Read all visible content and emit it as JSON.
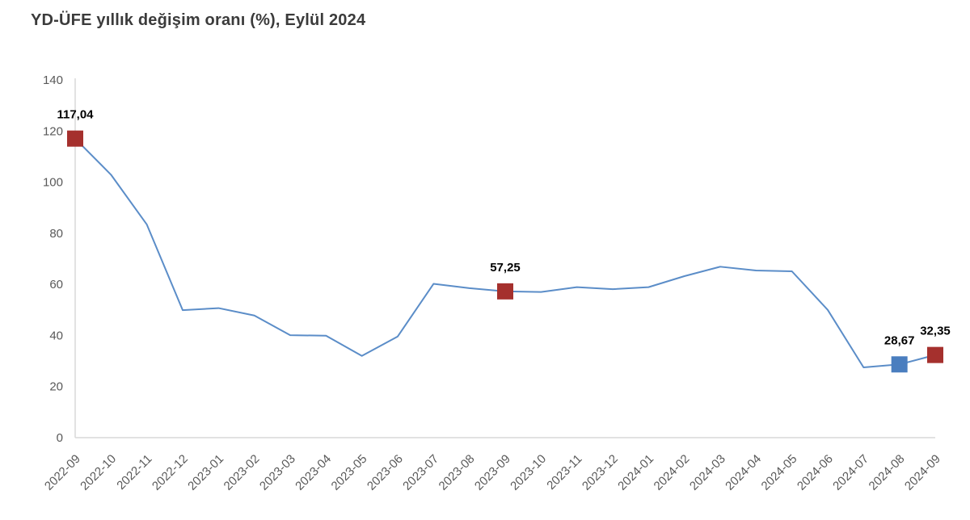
{
  "title": "YD-ÜFE yıllık değişim oranı (%), Eylül 2024",
  "chart_data": {
    "type": "line",
    "title": "YD-ÜFE yıllık değişim oranı (%), Eylül 2024",
    "xlabel": "",
    "ylabel": "",
    "ylim": [
      0,
      140
    ],
    "ytick_step": 20,
    "grid": false,
    "legend": "none",
    "x": [
      "2022-09",
      "2022-10",
      "2022-11",
      "2022-12",
      "2023-01",
      "2023-02",
      "2023-03",
      "2023-04",
      "2023-05",
      "2023-06",
      "2023-07",
      "2023-08",
      "2023-09",
      "2023-10",
      "2023-11",
      "2023-12",
      "2024-01",
      "2024-02",
      "2024-03",
      "2024-04",
      "2024-05",
      "2024-06",
      "2024-07",
      "2024-08",
      "2024-09"
    ],
    "values": [
      117.04,
      102.9,
      83.4,
      49.9,
      50.7,
      47.8,
      40.1,
      39.9,
      32.0,
      39.6,
      60.2,
      58.5,
      57.25,
      57.0,
      58.9,
      58.1,
      58.9,
      63.2,
      66.9,
      65.4,
      65.1,
      50.0,
      27.5,
      28.67,
      32.35
    ],
    "highlighted_points": [
      {
        "x": "2022-09",
        "value": 117.04,
        "label": "117,04",
        "color": "#A5302D"
      },
      {
        "x": "2023-09",
        "value": 57.25,
        "label": "57,25",
        "color": "#A5302D"
      },
      {
        "x": "2024-08",
        "value": 28.67,
        "label": "28,67",
        "color": "#4A7EBF"
      },
      {
        "x": "2024-09",
        "value": 32.35,
        "label": "32,35",
        "color": "#A5302D"
      }
    ],
    "colors": {
      "line": "#5B8DC8",
      "marker_red": "#A5302D",
      "marker_blue": "#4A7EBF",
      "axis": "#D9D9D9",
      "tick_text": "#595959",
      "value_label_text": "#000000"
    },
    "ytick_labels": [
      "0",
      "20",
      "40",
      "60",
      "80",
      "100",
      "120",
      "140"
    ]
  }
}
